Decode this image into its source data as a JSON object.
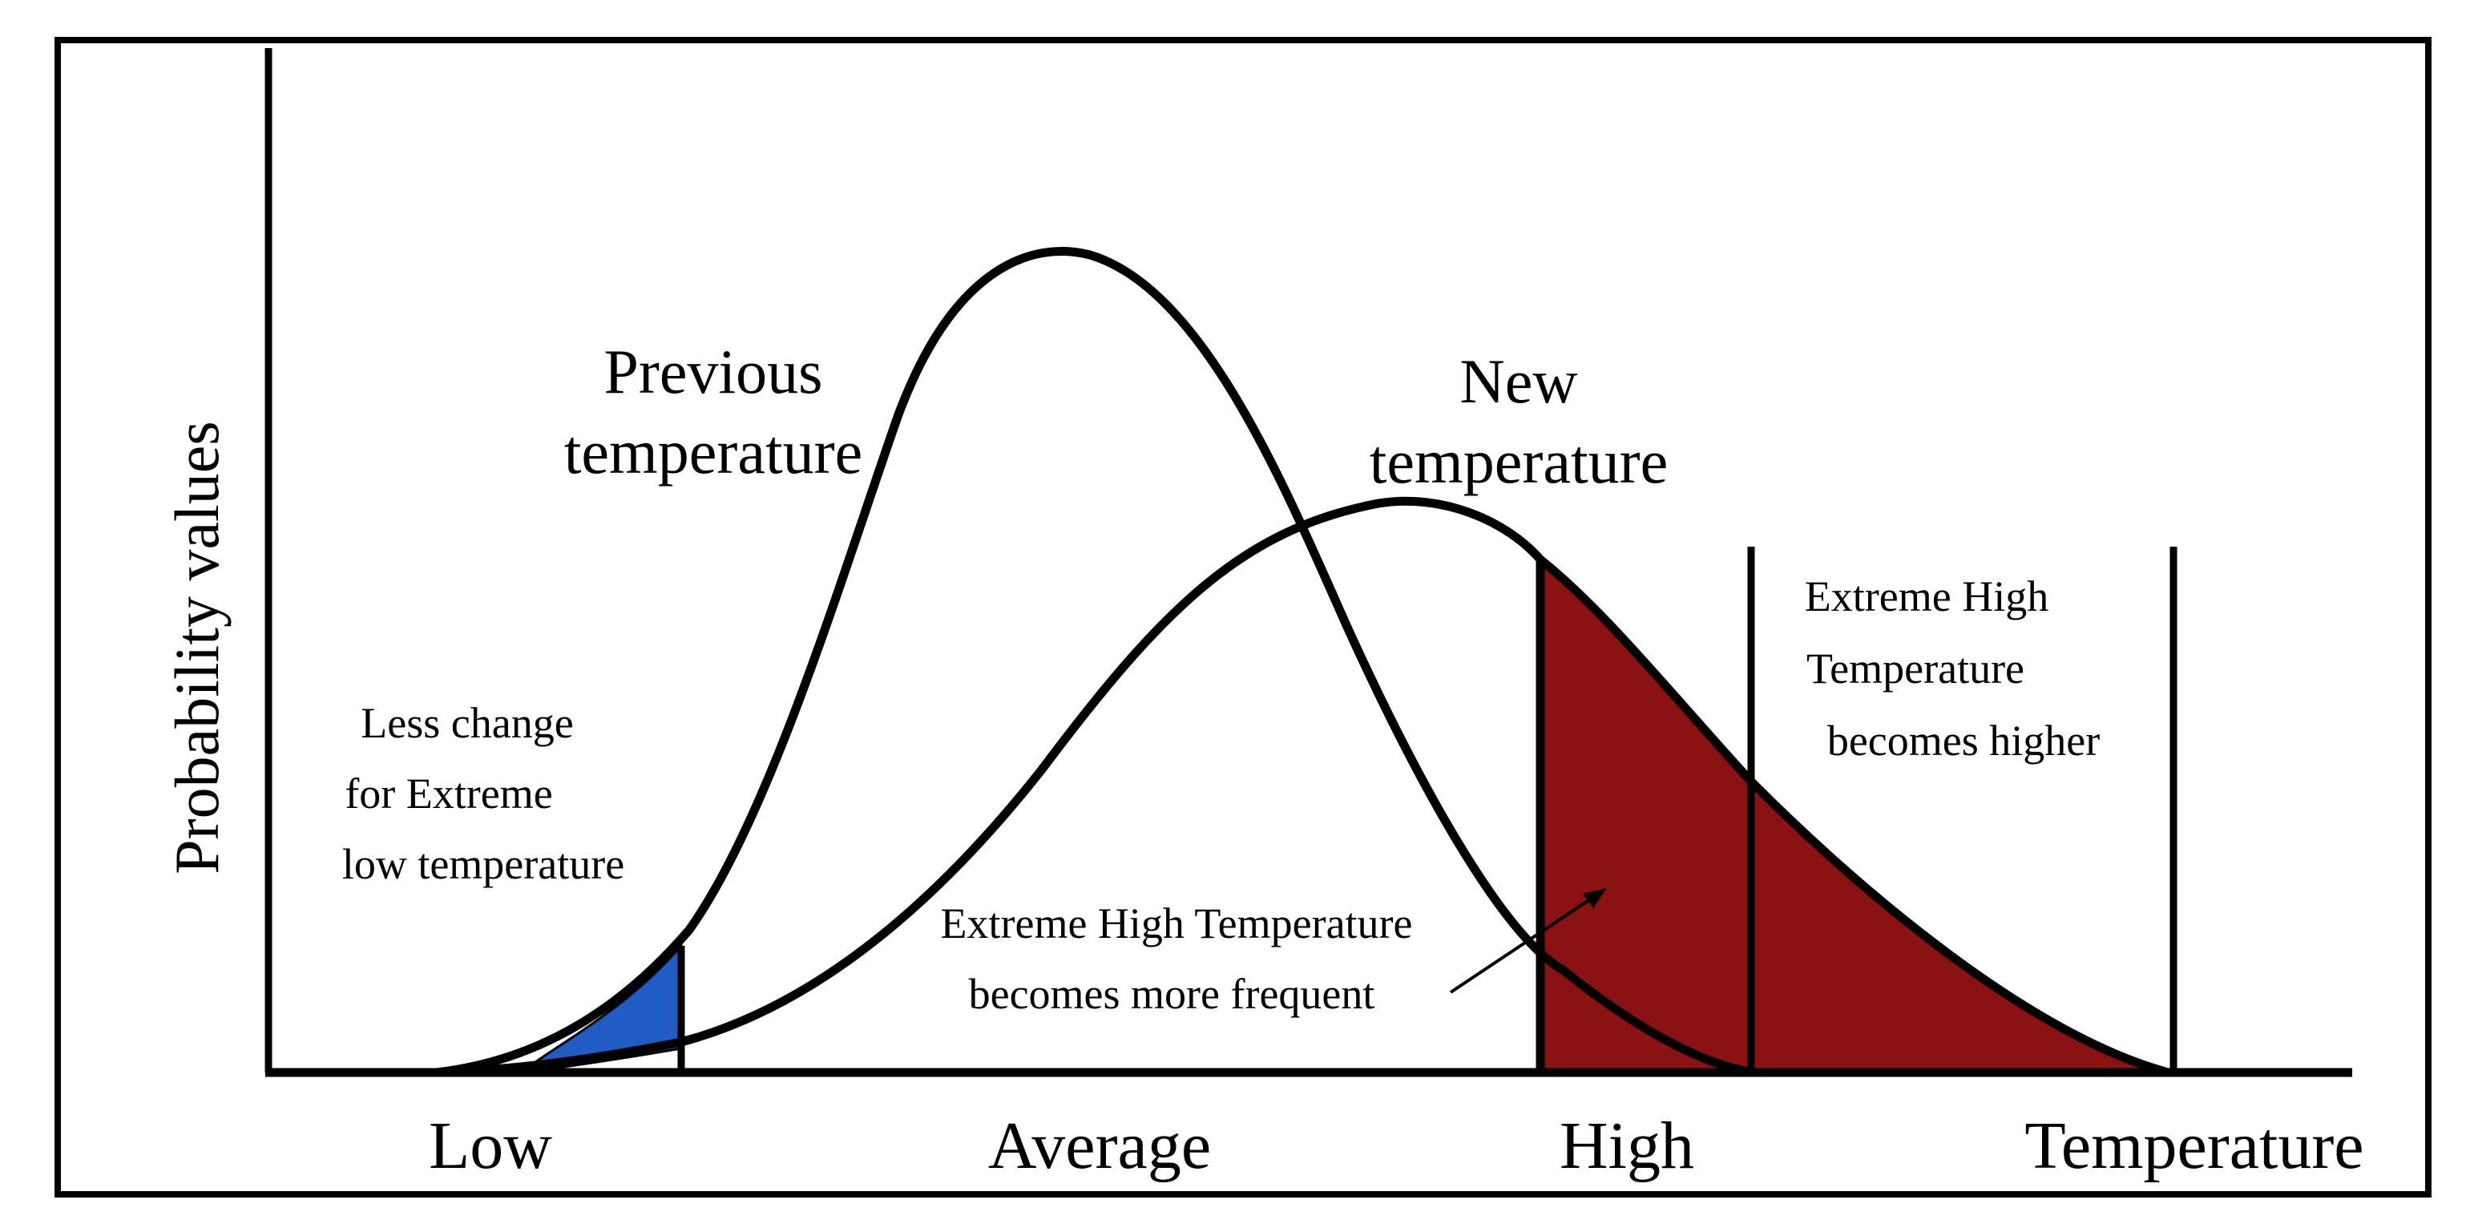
{
  "figure": {
    "y_axis_label": "Probability values",
    "x_axis_labels": {
      "low": "Low",
      "average": "Average",
      "high": "High",
      "end": "Temperature"
    },
    "curves": {
      "previous": {
        "label_line1": "Previous",
        "label_line2": "temperature"
      },
      "new": {
        "label_line1": "New",
        "label_line2": "temperature"
      }
    },
    "annotations": {
      "low_extreme": {
        "line1": "Less change",
        "line2": "for Extreme",
        "line3": "low temperature"
      },
      "high_frequent": {
        "line1": "Extreme High Temperature",
        "line2": "becomes more frequent"
      },
      "high_higher": {
        "line1": "Extreme High",
        "line2": "Temperature",
        "line3": "becomes higher"
      }
    },
    "colors": {
      "low_tail_fill": "#1f5cc4",
      "high_tail_fill": "#8b1212",
      "line": "#000000",
      "background": "#ffffff"
    }
  }
}
